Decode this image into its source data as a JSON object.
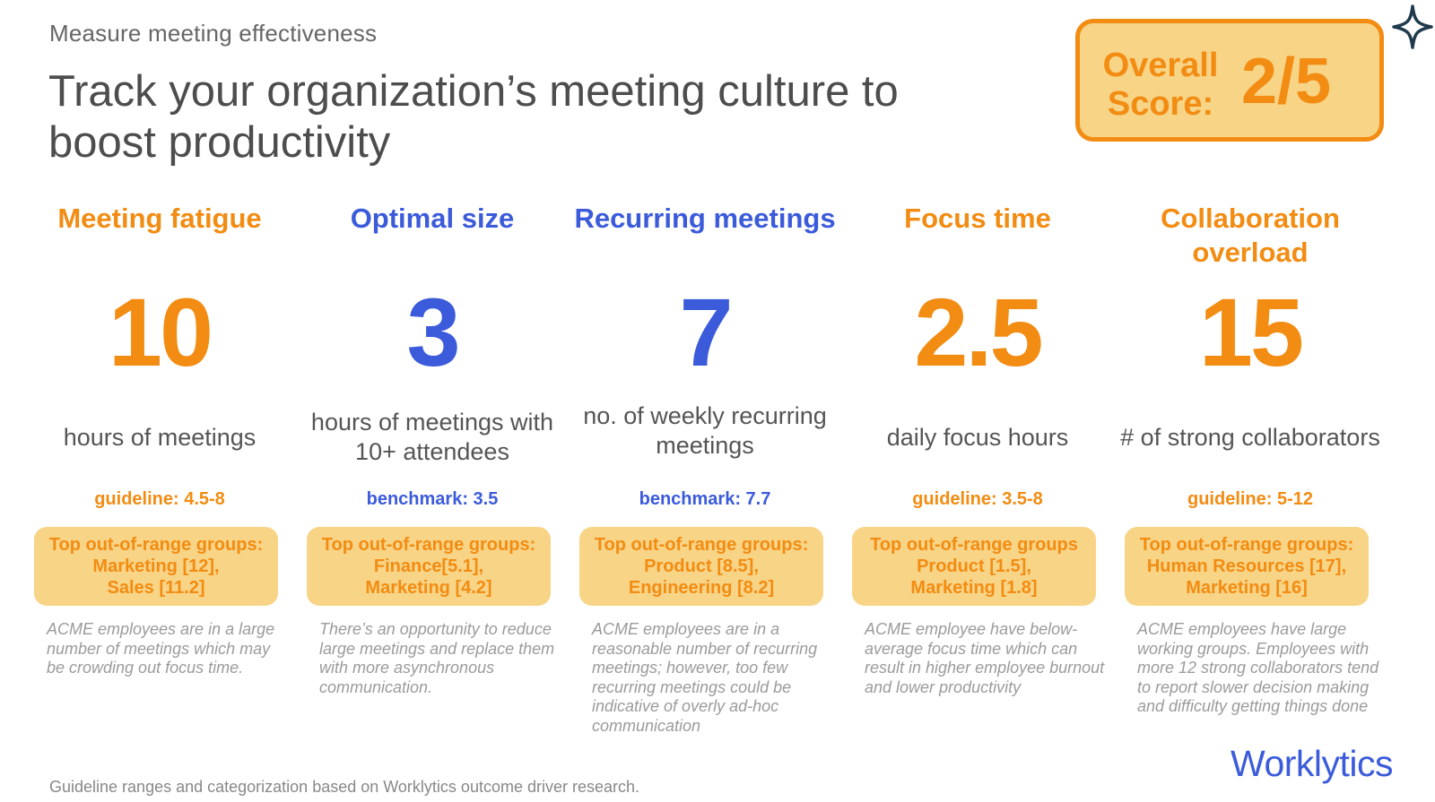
{
  "header": {
    "eyebrow": "Measure meeting effectiveness",
    "title": "Track your organization’s meeting culture to boost productivity"
  },
  "score": {
    "label_line1": "Overall",
    "label_line2": "Score:",
    "value": "2/5"
  },
  "metrics": [
    {
      "category": "Meeting fatigue",
      "value": "10",
      "unit": "hours of meetings",
      "guide_label": "guideline: 4.5-8",
      "groups": [
        "Top out-of-range groups:",
        "Marketing [12],",
        "Sales [11.2]"
      ],
      "note": "ACME employees are in a large number of meetings which may be crowding out focus time."
    },
    {
      "category": "Optimal size",
      "value": "3",
      "unit": "hours of meetings with 10+ attendees",
      "guide_label": "benchmark: 3.5",
      "groups": [
        "Top out-of-range groups:",
        "Finance[5.1],",
        "Marketing [4.2]"
      ],
      "note": "There’s an opportunity to reduce large meetings and replace them with more asynchronous communication."
    },
    {
      "category": "Recurring meetings",
      "value": "7",
      "unit": "no. of weekly recurring meetings",
      "guide_label": "benchmark: 7.7",
      "groups": [
        "Top out-of-range groups:",
        "Product [8.5],",
        "Engineering [8.2]"
      ],
      "note": "ACME employees are in a reasonable number of recurring meetings; however, too few recurring meetings could be indicative of overly ad-hoc communication"
    },
    {
      "category": "Focus time",
      "value": "2.5",
      "unit": "daily focus hours",
      "guide_label": "guideline: 3.5-8",
      "groups": [
        "Top out-of-range groups",
        "Product [1.5],",
        "Marketing [1.8]"
      ],
      "note": "ACME employee have below-average focus time which can result in higher employee burnout and lower productivity"
    },
    {
      "category": "Collaboration overload",
      "value": "15",
      "unit": "# of strong collaborators",
      "guide_label": "guideline: 5-12",
      "groups": [
        "Top out-of-range groups:",
        "Human Resources [17],",
        "Marketing [16]"
      ],
      "note": "ACME employees have large working groups. Employees with more 12 strong collaborators tend to report slower decision making and difficulty getting things done"
    }
  ],
  "footer": {
    "source": "Guideline ranges and categorization based on Worklytics outcome driver research."
  },
  "brand": {
    "name": "Worklytics"
  },
  "colors": {
    "orange": "#f28c12",
    "blue": "#3b5bdb",
    "score_fill": "#f8d487",
    "sparkle": "#1f3a4d"
  },
  "icons": {
    "sparkle": "sparkle-icon"
  }
}
